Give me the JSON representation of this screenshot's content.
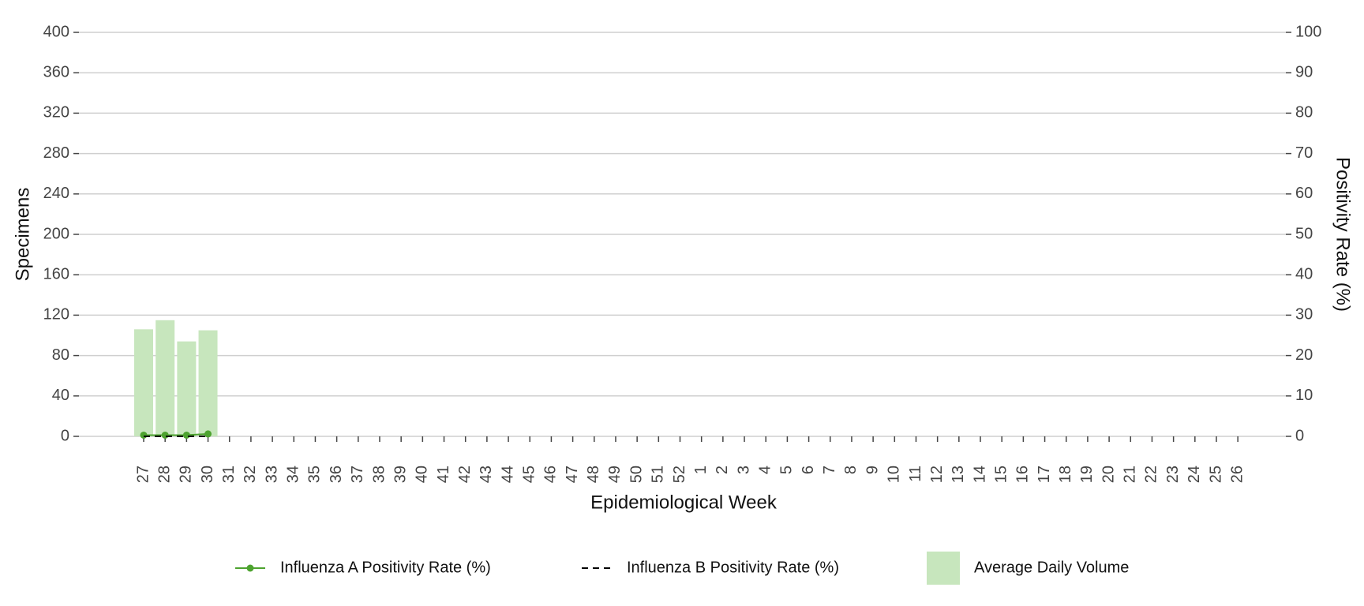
{
  "chart_data": {
    "type": "bar",
    "ylabel": "Specimens",
    "y2label": "Positivity Rate (%)",
    "xlabel": "Epidemiological Week",
    "categories": [
      "27",
      "28",
      "29",
      "30",
      "31",
      "32",
      "33",
      "34",
      "35",
      "36",
      "37",
      "38",
      "39",
      "40",
      "41",
      "42",
      "43",
      "44",
      "45",
      "46",
      "47",
      "48",
      "49",
      "50",
      "51",
      "52",
      "1",
      "2",
      "3",
      "4",
      "5",
      "6",
      "7",
      "8",
      "9",
      "10",
      "11",
      "12",
      "13",
      "14",
      "15",
      "16",
      "17",
      "18",
      "19",
      "20",
      "21",
      "22",
      "23",
      "24",
      "25",
      "26"
    ],
    "series": [
      {
        "name": "Influenza A Positivity Rate (%)",
        "type": "line",
        "axis": "y2",
        "color": "#4da32f",
        "markers": true,
        "values": [
          0.3,
          0.3,
          0.3,
          0.6,
          null,
          null,
          null,
          null,
          null,
          null,
          null,
          null,
          null,
          null,
          null,
          null,
          null,
          null,
          null,
          null,
          null,
          null,
          null,
          null,
          null,
          null,
          null,
          null,
          null,
          null,
          null,
          null,
          null,
          null,
          null,
          null,
          null,
          null,
          null,
          null,
          null,
          null,
          null,
          null,
          null,
          null,
          null,
          null,
          null,
          null,
          null,
          null
        ]
      },
      {
        "name": "Influenza B Positivity Rate (%)",
        "type": "line",
        "axis": "y2",
        "color": "#000000",
        "dashed": true,
        "values": [
          0,
          0,
          0,
          0,
          null,
          null,
          null,
          null,
          null,
          null,
          null,
          null,
          null,
          null,
          null,
          null,
          null,
          null,
          null,
          null,
          null,
          null,
          null,
          null,
          null,
          null,
          null,
          null,
          null,
          null,
          null,
          null,
          null,
          null,
          null,
          null,
          null,
          null,
          null,
          null,
          null,
          null,
          null,
          null,
          null,
          null,
          null,
          null,
          null,
          null,
          null,
          null
        ]
      },
      {
        "name": "Average Daily Volume",
        "type": "bar",
        "axis": "y",
        "color": "#c7e6bd",
        "values": [
          106,
          115,
          94,
          105,
          null,
          null,
          null,
          null,
          null,
          null,
          null,
          null,
          null,
          null,
          null,
          null,
          null,
          null,
          null,
          null,
          null,
          null,
          null,
          null,
          null,
          null,
          null,
          null,
          null,
          null,
          null,
          null,
          null,
          null,
          null,
          null,
          null,
          null,
          null,
          null,
          null,
          null,
          null,
          null,
          null,
          null,
          null,
          null,
          null,
          null,
          null,
          null
        ]
      }
    ],
    "ylim": [
      0,
      400
    ],
    "yticks": [
      0,
      40,
      80,
      120,
      160,
      200,
      240,
      280,
      320,
      360,
      400
    ],
    "y2lim": [
      0,
      100
    ],
    "y2ticks": [
      0,
      10,
      20,
      30,
      40,
      50,
      60,
      70,
      80,
      90,
      100
    ],
    "grid": true,
    "legend": "bottom"
  }
}
